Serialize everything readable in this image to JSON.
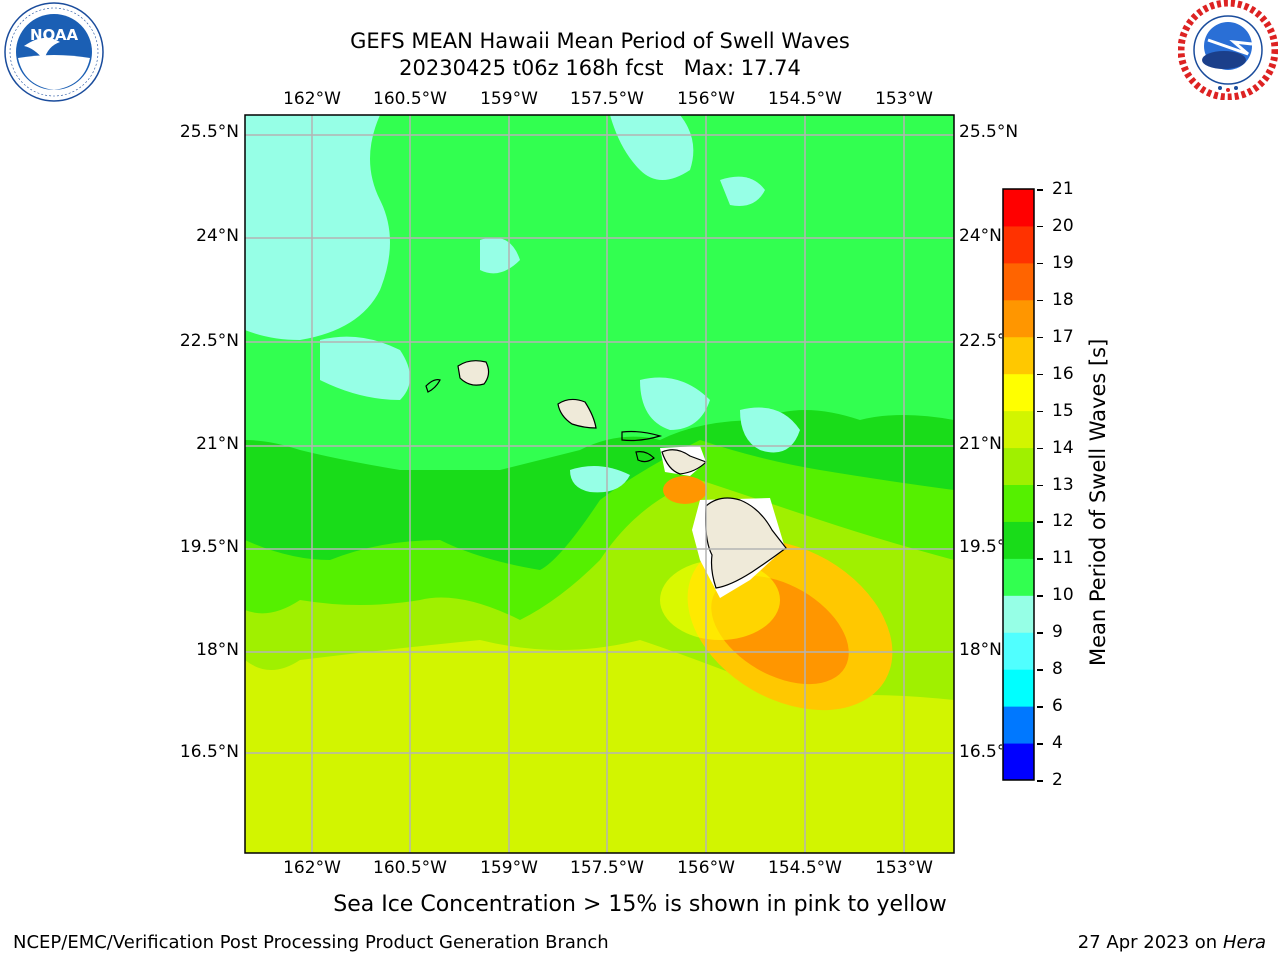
{
  "header": {
    "line1": "GEFS MEAN Hawaii Mean Period of Swell Waves",
    "line2": "20230425 t06z 168h fcst   Max: 17.74"
  },
  "logos": {
    "left": {
      "name": "noaa-logo",
      "text": "NOAA",
      "ring_text": "NATIONAL OCEANIC AND ATMOSPHERIC ADMINISTRATION · U.S. DEPARTMENT OF COMMERCE"
    },
    "right": {
      "name": "nws-logo",
      "ring_text": "NATIONAL WEATHER SERVICE"
    }
  },
  "map": {
    "lon_ticks": [
      "162°W",
      "160.5°W",
      "159°W",
      "157.5°W",
      "156°W",
      "154.5°W",
      "153°W"
    ],
    "lat_ticks": [
      "25.5°N",
      "24°N",
      "22.5°N",
      "21°N",
      "19.5°N",
      "18°N",
      "16.5°N"
    ],
    "lon_range": [
      -163.0,
      -152.3
    ],
    "lat_range": [
      15.0,
      25.7
    ],
    "max_value": 17.74
  },
  "colorbar": {
    "title": "Mean Period of Swell Waves [s]",
    "levels": [
      "2",
      "4",
      "6",
      "8",
      "9",
      "10",
      "11",
      "12",
      "13",
      "14",
      "15",
      "16",
      "17",
      "18",
      "19",
      "20",
      "21"
    ],
    "colors": [
      "#0000ff",
      "#0078ff",
      "#00ffff",
      "#50ffff",
      "#96ffe6",
      "#32ff50",
      "#19dc19",
      "#55f000",
      "#a0f000",
      "#d2f500",
      "#ffff00",
      "#ffc800",
      "#ff9600",
      "#ff6400",
      "#ff3200",
      "#ff0000"
    ]
  },
  "caption": "Sea Ice Concentration > 15% is shown in pink to yellow",
  "footer": {
    "left": "NCEP/EMC/Verification Post Processing Product Generation Branch",
    "right_prefix": "27 Apr 2023 on ",
    "right_host": "Hera"
  }
}
